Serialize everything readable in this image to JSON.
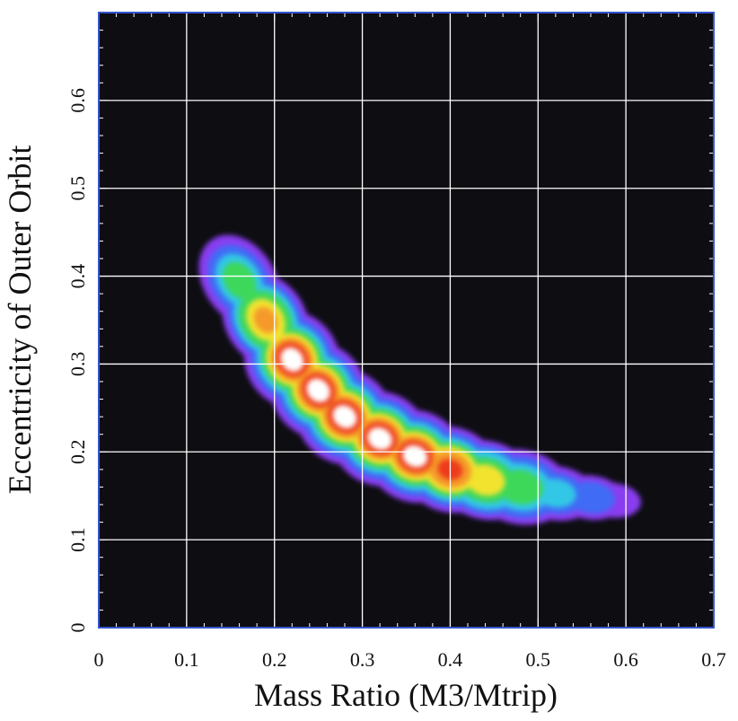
{
  "chart_data": {
    "type": "heatmap",
    "title": "",
    "xlabel": "Mass Ratio (M3/Mtrip)",
    "ylabel": "Eccentricity of Outer Orbit",
    "xlim": [
      0,
      0.7
    ],
    "ylim": [
      0,
      0.7
    ],
    "x_ticks": [
      0,
      0.1,
      0.2,
      0.3,
      0.4,
      0.5,
      0.6,
      0.7
    ],
    "x_tick_labels": [
      "0",
      "0.1",
      "0.2",
      "0.3",
      "0.4",
      "0.5",
      "0.6",
      "0.7"
    ],
    "y_ticks": [
      0,
      0.1,
      0.2,
      0.3,
      0.4,
      0.5,
      0.6
    ],
    "y_tick_labels": [
      "0",
      "0.1",
      "0.2",
      "0.3",
      "0.4",
      "0.5",
      "0.6"
    ],
    "grid": true,
    "background_color": "#0d0d12",
    "grid_color": "#ffffff",
    "frame_color": "#3355cc",
    "colormap": [
      "#8a3cf0",
      "#3f6cf5",
      "#30c7e6",
      "#3ed85a",
      "#f2e32e",
      "#f59a2a",
      "#ee3a1a",
      "#ffffff"
    ],
    "density_ridge": [
      {
        "x": 0.16,
        "y": 0.395,
        "peak": 0.45
      },
      {
        "x": 0.19,
        "y": 0.35,
        "peak": 0.65
      },
      {
        "x": 0.22,
        "y": 0.305,
        "peak": 1.0
      },
      {
        "x": 0.25,
        "y": 0.27,
        "peak": 1.0
      },
      {
        "x": 0.28,
        "y": 0.24,
        "peak": 1.0
      },
      {
        "x": 0.32,
        "y": 0.215,
        "peak": 1.0
      },
      {
        "x": 0.36,
        "y": 0.195,
        "peak": 0.95
      },
      {
        "x": 0.4,
        "y": 0.18,
        "peak": 0.78
      },
      {
        "x": 0.44,
        "y": 0.168,
        "peak": 0.6
      },
      {
        "x": 0.48,
        "y": 0.16,
        "peak": 0.5
      },
      {
        "x": 0.52,
        "y": 0.153,
        "peak": 0.3
      },
      {
        "x": 0.56,
        "y": 0.148,
        "peak": 0.2
      },
      {
        "x": 0.585,
        "y": 0.145,
        "peak": 0.1
      }
    ]
  }
}
